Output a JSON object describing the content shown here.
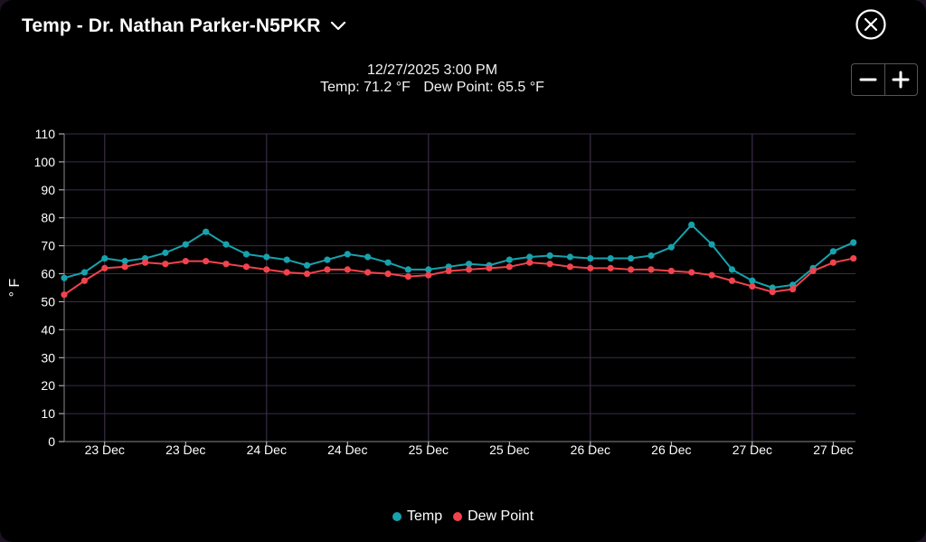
{
  "header": {
    "title": "Temp - Dr. Nathan Parker-N5PKR",
    "dropdown_icon": "chevron-down-icon",
    "close_icon": "close-circle-icon"
  },
  "zoom": {
    "out_icon": "minus-icon",
    "in_icon": "plus-icon"
  },
  "readout": {
    "datetime": "12/27/2025 3:00 PM",
    "temp_text": "Temp: 71.2 °F",
    "dew_text": "Dew Point: 65.5 °F"
  },
  "colors": {
    "temp": "#17a2ad",
    "dew": "#f2434d",
    "grid": "#3a2d46",
    "axis_text": "#ffffff"
  },
  "chart_data": {
    "type": "line",
    "title": "",
    "ylabel": "° F",
    "xlabel": "",
    "ylim": [
      0,
      110
    ],
    "yticks": [
      0,
      10,
      20,
      30,
      40,
      50,
      60,
      70,
      80,
      90,
      100,
      110
    ],
    "x_range": [
      0,
      39.1
    ],
    "xtick_positions": [
      2,
      6,
      10,
      14,
      18,
      22,
      26,
      30,
      34,
      38
    ],
    "xtick_labels": [
      "23 Dec",
      "23 Dec",
      "24 Dec",
      "24 Dec",
      "25 Dec",
      "25 Dec",
      "26 Dec",
      "26 Dec",
      "27 Dec",
      "27 Dec"
    ],
    "vertical_gridlines_at": [
      2,
      10,
      18,
      26,
      34
    ],
    "legend_position": "bottom-center",
    "x": [
      0,
      1,
      2,
      3,
      4,
      5,
      6,
      7,
      8,
      9,
      10,
      11,
      12,
      13,
      14,
      15,
      16,
      17,
      18,
      19,
      20,
      21,
      22,
      23,
      24,
      25,
      26,
      27,
      28,
      29,
      30,
      31,
      32,
      33,
      34,
      35,
      36,
      37,
      38,
      39
    ],
    "series": [
      {
        "name": "Temp",
        "values": [
          58.5,
          60.5,
          65.5,
          64.5,
          65.5,
          67.5,
          70.5,
          75.0,
          70.5,
          67.0,
          66.0,
          65.0,
          63.0,
          65.0,
          67.0,
          66.0,
          64.0,
          61.5,
          61.5,
          62.5,
          63.5,
          63.0,
          65.0,
          66.0,
          66.5,
          66.0,
          65.5,
          65.5,
          65.5,
          66.5,
          69.5,
          77.5,
          70.5,
          61.5,
          57.5,
          55.0,
          56.0,
          62.0,
          68.0,
          71.2
        ]
      },
      {
        "name": "Dew Point",
        "values": [
          52.5,
          57.5,
          62.0,
          62.5,
          64.0,
          63.5,
          64.5,
          64.5,
          63.5,
          62.5,
          61.5,
          60.5,
          60.0,
          61.5,
          61.5,
          60.5,
          60.0,
          59.0,
          59.5,
          61.0,
          61.5,
          62.0,
          62.5,
          64.0,
          63.5,
          62.5,
          62.0,
          62.0,
          61.5,
          61.5,
          61.0,
          60.5,
          59.5,
          57.5,
          55.5,
          53.5,
          54.5,
          61.0,
          64.0,
          65.5
        ]
      }
    ]
  }
}
